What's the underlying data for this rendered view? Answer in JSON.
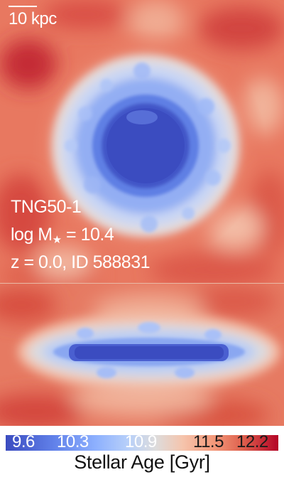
{
  "scalebar": {
    "label": "10 kpc"
  },
  "info": {
    "simulation": "TNG50-1",
    "mass_prefix": "log M",
    "mass_subscript": "★",
    "mass_suffix": " = 10.4",
    "redshift_line": "z = 0.0, ID 588831"
  },
  "colorbar": {
    "label": "Stellar Age [Gyr]",
    "ticks": [
      {
        "text": "9.6",
        "value": 9.6
      },
      {
        "text": "10.3",
        "value": 10.3
      },
      {
        "text": "10.9",
        "value": 10.9
      },
      {
        "text": "11.5",
        "value": 11.5
      },
      {
        "text": "12.2",
        "value": 12.2
      }
    ]
  },
  "colors": {
    "young": "#3b4cc0",
    "mid": "#dddcdc",
    "old": "#b40426",
    "background_field": "#e8715a"
  }
}
